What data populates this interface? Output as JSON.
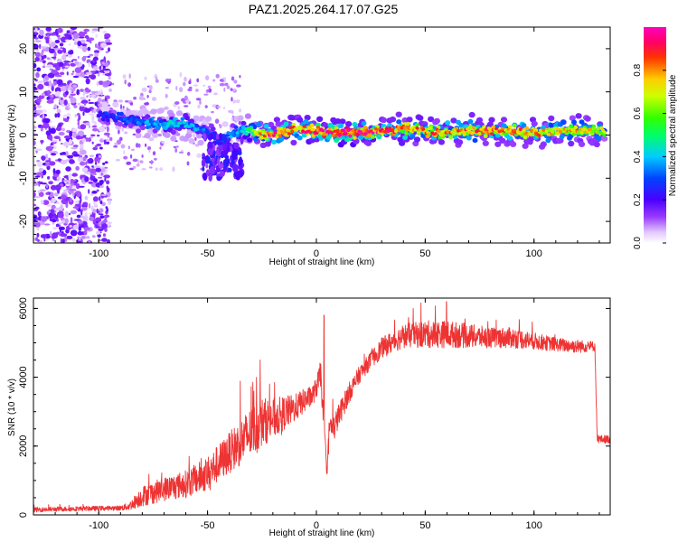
{
  "title": "PAZ1.2025.264.17.07.G25",
  "chart_data": [
    {
      "type": "heatmap",
      "xlabel": "Height of straight line (km)",
      "ylabel": "Frequency (Hz)",
      "xlim": [
        -130,
        135
      ],
      "ylim": [
        -25,
        25
      ],
      "xticks": [
        -100,
        -50,
        0,
        50,
        100
      ],
      "yticks": [
        -20,
        -10,
        0,
        10,
        20
      ],
      "colorbar": {
        "label": "Normalized spectral amplitude",
        "range": [
          0.0,
          1.0
        ],
        "ticks": [
          0.0,
          0.2,
          0.4,
          0.6,
          0.8
        ],
        "colormap": "rainbow (white-purple-blue-cyan-green-yellow-red-magenta)"
      },
      "ridge": {
        "x": [
          -100,
          -90,
          -80,
          -70,
          -60,
          -50,
          -45,
          -40,
          -35,
          -30,
          -25,
          -20,
          -10,
          0,
          10,
          20,
          30,
          40,
          50,
          60,
          70,
          80,
          90,
          100,
          110,
          120,
          133
        ],
        "frequency": [
          4.5,
          4.0,
          3.0,
          2.5,
          2.5,
          0.5,
          -1.0,
          0.0,
          1.0,
          1.0,
          0.0,
          0.0,
          1.5,
          1.0,
          0.5,
          0.5,
          1.0,
          1.5,
          1.0,
          0.5,
          1.0,
          1.0,
          1.0,
          0.5,
          1.0,
          1.0,
          1.0
        ],
        "amplitude": [
          0.25,
          0.3,
          0.35,
          0.4,
          0.4,
          0.35,
          0.3,
          0.35,
          0.4,
          0.55,
          0.8,
          0.9,
          0.8,
          0.95,
          0.95,
          0.95,
          0.9,
          0.85,
          0.8,
          0.8,
          0.8,
          0.85,
          0.8,
          0.8,
          0.75,
          0.75,
          0.7
        ]
      },
      "noise_region": {
        "x_range": [
          -130,
          -95
        ],
        "amplitude": 0.15
      }
    },
    {
      "type": "line",
      "xlabel": "Height of straight line (km)",
      "ylabel": "SNR (10 * v/v)",
      "xlim": [
        -130,
        135
      ],
      "ylim": [
        0,
        6300
      ],
      "xticks": [
        -100,
        -50,
        0,
        50,
        100
      ],
      "yticks": [
        0,
        2000,
        4000,
        6000
      ],
      "color": "#ee3333",
      "series": [
        {
          "x": [
            -130,
            -110,
            -90,
            -86,
            -80,
            -70,
            -60,
            -50,
            -40,
            -30,
            -25,
            -20,
            -15,
            -10,
            -5,
            -2,
            0,
            2,
            3,
            4,
            5,
            6,
            8,
            10,
            15,
            20,
            25,
            30,
            40,
            50,
            60,
            70,
            80,
            90,
            100,
            110,
            120,
            126,
            128,
            129,
            135
          ],
          "mean": [
            150,
            180,
            200,
            250,
            550,
            750,
            900,
            1200,
            1800,
            2400,
            2700,
            2800,
            2950,
            3100,
            3350,
            3450,
            3700,
            4100,
            3000,
            2000,
            1300,
            2600,
            2500,
            2850,
            3550,
            4100,
            4500,
            4850,
            5200,
            5250,
            5250,
            5200,
            5150,
            5150,
            5050,
            4950,
            4900,
            4900,
            4900,
            2200,
            2200
          ],
          "noise": [
            70,
            70,
            70,
            120,
            300,
            350,
            400,
            500,
            600,
            750,
            700,
            600,
            500,
            400,
            350,
            300,
            300,
            400,
            300,
            300,
            300,
            350,
            400,
            350,
            300,
            250,
            250,
            300,
            350,
            400,
            400,
            350,
            300,
            300,
            250,
            200,
            200,
            150,
            150,
            120,
            120
          ],
          "spikes": [
            {
              "x": 3.5,
              "y": 5800
            },
            {
              "x": -25.8,
              "y": 4500
            },
            {
              "x": -28.7,
              "y": 3600
            },
            {
              "x": 59.8,
              "y": 6200
            },
            {
              "x": 44.5,
              "y": 6000
            }
          ]
        }
      ]
    }
  ]
}
